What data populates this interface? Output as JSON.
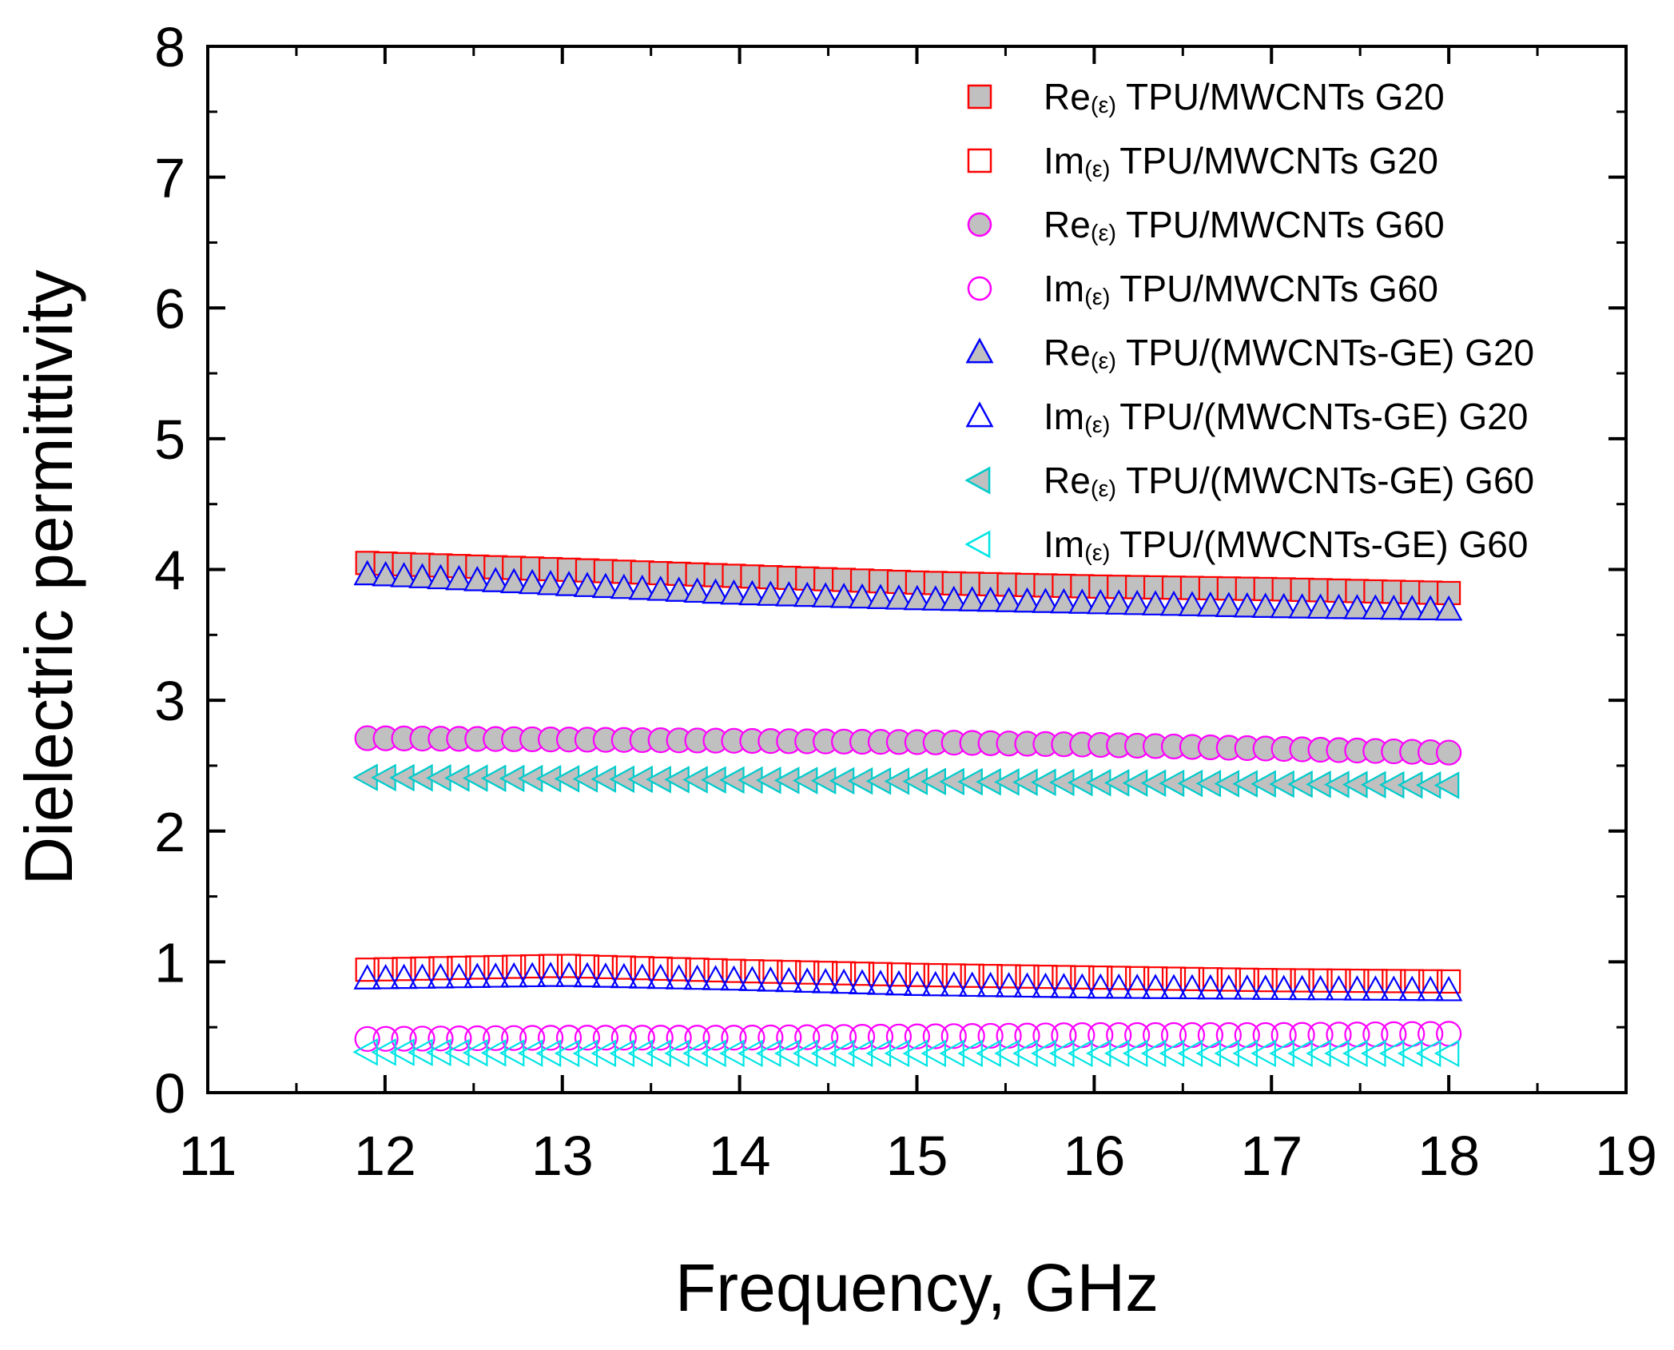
{
  "chart_data": {
    "type": "scatter",
    "title": "",
    "xlabel": "Frequency, GHz",
    "ylabel": "Dielectric permittivity",
    "xlim": [
      11,
      19
    ],
    "ylim": [
      0,
      8
    ],
    "xticks": [
      11,
      12,
      13,
      14,
      15,
      16,
      17,
      18,
      19
    ],
    "yticks": [
      0,
      1,
      2,
      3,
      4,
      5,
      6,
      7,
      8
    ],
    "grid": false,
    "legend_position": "top-right",
    "x_range": [
      11.9,
      18.0
    ],
    "num_points": 60,
    "series": [
      {
        "id": "s1",
        "prefix": "Re",
        "sub": "(ε)",
        "rest": " TPU/MWCNTs G20",
        "marker": "square",
        "filled": true,
        "color": "#ff0000",
        "x_start": 11.9,
        "x_end": 18.0,
        "y_points": [
          [
            11.9,
            4.05
          ],
          [
            13.0,
            4.0
          ],
          [
            14.0,
            3.95
          ],
          [
            15.0,
            3.9
          ],
          [
            16.0,
            3.87
          ],
          [
            17.0,
            3.85
          ],
          [
            18.0,
            3.82
          ]
        ]
      },
      {
        "id": "s2",
        "prefix": "Im",
        "sub": "(ε)",
        "rest": " TPU/MWCNTs G20",
        "marker": "square",
        "filled": false,
        "color": "#ff0000",
        "x_start": 11.9,
        "x_end": 18.0,
        "y_points": [
          [
            11.9,
            0.94
          ],
          [
            13.0,
            0.97
          ],
          [
            14.0,
            0.93
          ],
          [
            15.0,
            0.9
          ],
          [
            16.0,
            0.88
          ],
          [
            17.0,
            0.86
          ],
          [
            18.0,
            0.85
          ]
        ]
      },
      {
        "id": "s3",
        "prefix": "Re",
        "sub": "(ε)",
        "rest": " TPU/MWCNTs G60",
        "marker": "circle",
        "filled": true,
        "color": "#ff00ff",
        "x_start": 11.9,
        "x_end": 18.0,
        "y_points": [
          [
            11.9,
            2.71
          ],
          [
            13.0,
            2.7
          ],
          [
            14.0,
            2.69
          ],
          [
            15.0,
            2.68
          ],
          [
            16.0,
            2.66
          ],
          [
            17.0,
            2.63
          ],
          [
            18.0,
            2.6
          ]
        ]
      },
      {
        "id": "s4",
        "prefix": "Im",
        "sub": "(ε)",
        "rest": " TPU/MWCNTs G60",
        "marker": "circle",
        "filled": false,
        "color": "#ff00ff",
        "x_start": 11.9,
        "x_end": 18.0,
        "y_points": [
          [
            11.9,
            0.41
          ],
          [
            13.0,
            0.42
          ],
          [
            14.0,
            0.42
          ],
          [
            15.0,
            0.43
          ],
          [
            16.0,
            0.44
          ],
          [
            17.0,
            0.44
          ],
          [
            18.0,
            0.45
          ]
        ]
      },
      {
        "id": "s5",
        "prefix": "Re",
        "sub": "(ε)",
        "rest": " TPU/(MWCNTs-GE) G20",
        "marker": "triangle-up",
        "filled": true,
        "color": "#0000ff",
        "x_start": 11.9,
        "x_end": 18.0,
        "y_points": [
          [
            11.9,
            3.96
          ],
          [
            13.0,
            3.88
          ],
          [
            14.0,
            3.81
          ],
          [
            15.0,
            3.77
          ],
          [
            16.0,
            3.74
          ],
          [
            17.0,
            3.71
          ],
          [
            18.0,
            3.69
          ]
        ]
      },
      {
        "id": "s6",
        "prefix": "Im",
        "sub": "(ε)",
        "rest": " TPU/(MWCNTs-GE) G20",
        "marker": "triangle-up",
        "filled": false,
        "color": "#0000ff",
        "x_start": 11.9,
        "x_end": 18.0,
        "y_points": [
          [
            11.9,
            0.87
          ],
          [
            13.0,
            0.89
          ],
          [
            14.0,
            0.86
          ],
          [
            15.0,
            0.82
          ],
          [
            16.0,
            0.8
          ],
          [
            17.0,
            0.79
          ],
          [
            18.0,
            0.78
          ]
        ]
      },
      {
        "id": "s7",
        "prefix": "Re",
        "sub": "(ε)",
        "rest": " TPU/(MWCNTs-GE) G60",
        "marker": "triangle-left",
        "filled": true,
        "color": "#00cccc",
        "x_start": 11.9,
        "x_end": 18.0,
        "y_points": [
          [
            11.9,
            2.41
          ],
          [
            13.0,
            2.4
          ],
          [
            14.0,
            2.39
          ],
          [
            15.0,
            2.38
          ],
          [
            16.0,
            2.37
          ],
          [
            17.0,
            2.36
          ],
          [
            18.0,
            2.35
          ]
        ]
      },
      {
        "id": "s8",
        "prefix": "Im",
        "sub": "(ε)",
        "rest": " TPU/(MWCNTs-GE) G60",
        "marker": "triangle-left",
        "filled": false,
        "color": "#00e5e5",
        "x_start": 11.9,
        "x_end": 18.0,
        "y_points": [
          [
            11.9,
            0.31
          ],
          [
            13.0,
            0.3
          ],
          [
            14.0,
            0.3
          ],
          [
            15.0,
            0.3
          ],
          [
            16.0,
            0.3
          ],
          [
            17.0,
            0.3
          ],
          [
            18.0,
            0.3
          ]
        ]
      }
    ]
  }
}
